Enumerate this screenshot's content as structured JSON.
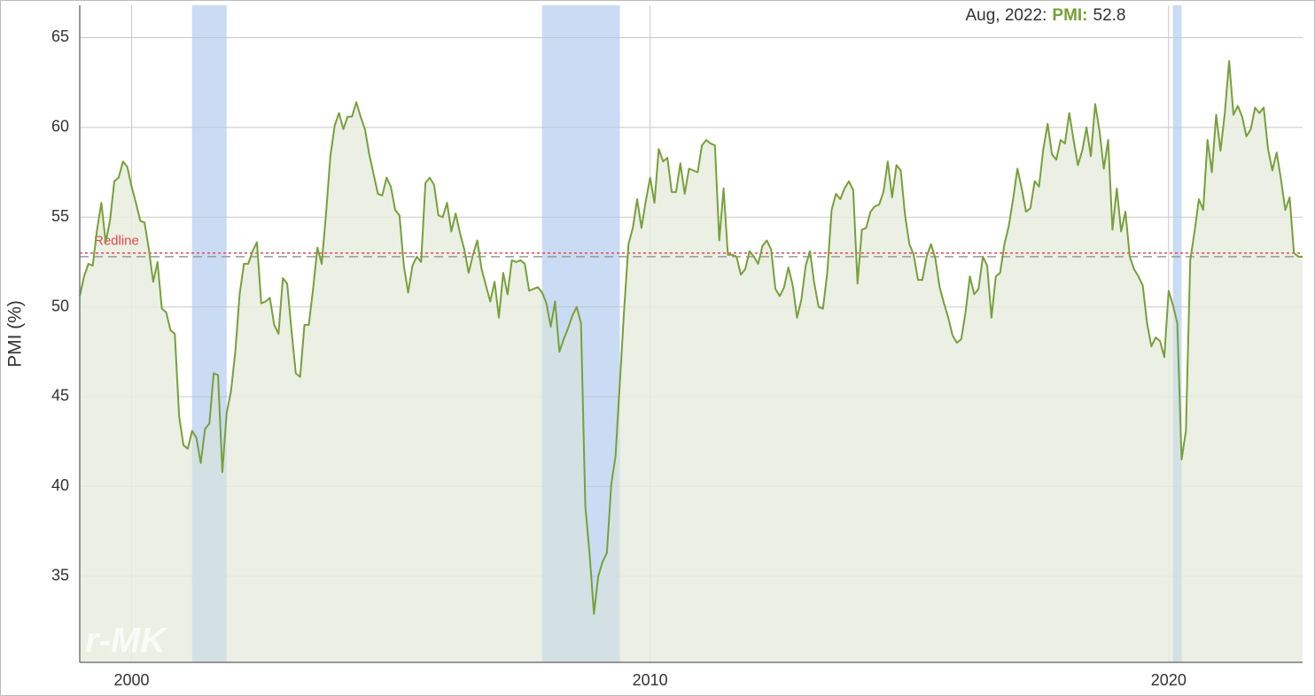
{
  "chart_data": {
    "type": "line",
    "y_label": "PMI (%)",
    "watermark": "r-MK",
    "tooltip": {
      "date": "Aug, 2022:",
      "series": "PMI:",
      "value": 52.8
    },
    "reference_line": {
      "label": "Redline",
      "value": 53,
      "color": "#e8474c"
    },
    "recessions": [
      [
        "2001-03",
        "2001-11"
      ],
      [
        "2007-12",
        "2009-06"
      ],
      [
        "2020-02",
        "2020-04"
      ]
    ],
    "xlim": [
      "1999-01",
      "2022-08"
    ],
    "xticks": [
      2000,
      2010,
      2020
    ],
    "ylim": [
      30.2,
      66.8
    ],
    "yticks": [
      35,
      40,
      45,
      50,
      55,
      60,
      65
    ],
    "grid": true,
    "x": [
      "1999-01",
      "1999-02",
      "1999-03",
      "1999-04",
      "1999-05",
      "1999-06",
      "1999-07",
      "1999-08",
      "1999-09",
      "1999-10",
      "1999-11",
      "1999-12",
      "2000-01",
      "2000-02",
      "2000-03",
      "2000-04",
      "2000-05",
      "2000-06",
      "2000-07",
      "2000-08",
      "2000-09",
      "2000-10",
      "2000-11",
      "2000-12",
      "2001-01",
      "2001-02",
      "2001-03",
      "2001-04",
      "2001-05",
      "2001-06",
      "2001-07",
      "2001-08",
      "2001-09",
      "2001-10",
      "2001-11",
      "2001-12",
      "2002-01",
      "2002-02",
      "2002-03",
      "2002-04",
      "2002-05",
      "2002-06",
      "2002-07",
      "2002-08",
      "2002-09",
      "2002-10",
      "2002-11",
      "2002-12",
      "2003-01",
      "2003-02",
      "2003-03",
      "2003-04",
      "2003-05",
      "2003-06",
      "2003-07",
      "2003-08",
      "2003-09",
      "2003-10",
      "2003-11",
      "2003-12",
      "2004-01",
      "2004-02",
      "2004-03",
      "2004-04",
      "2004-05",
      "2004-06",
      "2004-07",
      "2004-08",
      "2004-09",
      "2004-10",
      "2004-11",
      "2004-12",
      "2005-01",
      "2005-02",
      "2005-03",
      "2005-04",
      "2005-05",
      "2005-06",
      "2005-07",
      "2005-08",
      "2005-09",
      "2005-10",
      "2005-11",
      "2005-12",
      "2006-01",
      "2006-02",
      "2006-03",
      "2006-04",
      "2006-05",
      "2006-06",
      "2006-07",
      "2006-08",
      "2006-09",
      "2006-10",
      "2006-11",
      "2006-12",
      "2007-01",
      "2007-02",
      "2007-03",
      "2007-04",
      "2007-05",
      "2007-06",
      "2007-07",
      "2007-08",
      "2007-09",
      "2007-10",
      "2007-11",
      "2007-12",
      "2008-01",
      "2008-02",
      "2008-03",
      "2008-04",
      "2008-05",
      "2008-06",
      "2008-07",
      "2008-08",
      "2008-09",
      "2008-10",
      "2008-11",
      "2008-12",
      "2009-01",
      "2009-02",
      "2009-03",
      "2009-04",
      "2009-05",
      "2009-06",
      "2009-07",
      "2009-08",
      "2009-09",
      "2009-10",
      "2009-11",
      "2009-12",
      "2010-01",
      "2010-02",
      "2010-03",
      "2010-04",
      "2010-05",
      "2010-06",
      "2010-07",
      "2010-08",
      "2010-09",
      "2010-10",
      "2010-11",
      "2010-12",
      "2011-01",
      "2011-02",
      "2011-03",
      "2011-04",
      "2011-05",
      "2011-06",
      "2011-07",
      "2011-08",
      "2011-09",
      "2011-10",
      "2011-11",
      "2011-12",
      "2012-01",
      "2012-02",
      "2012-03",
      "2012-04",
      "2012-05",
      "2012-06",
      "2012-07",
      "2012-08",
      "2012-09",
      "2012-10",
      "2012-11",
      "2012-12",
      "2013-01",
      "2013-02",
      "2013-03",
      "2013-04",
      "2013-05",
      "2013-06",
      "2013-07",
      "2013-08",
      "2013-09",
      "2013-10",
      "2013-11",
      "2013-12",
      "2014-01",
      "2014-02",
      "2014-03",
      "2014-04",
      "2014-05",
      "2014-06",
      "2014-07",
      "2014-08",
      "2014-09",
      "2014-10",
      "2014-11",
      "2014-12",
      "2015-01",
      "2015-02",
      "2015-03",
      "2015-04",
      "2015-05",
      "2015-06",
      "2015-07",
      "2015-08",
      "2015-09",
      "2015-10",
      "2015-11",
      "2015-12",
      "2016-01",
      "2016-02",
      "2016-03",
      "2016-04",
      "2016-05",
      "2016-06",
      "2016-07",
      "2016-08",
      "2016-09",
      "2016-10",
      "2016-11",
      "2016-12",
      "2017-01",
      "2017-02",
      "2017-03",
      "2017-04",
      "2017-05",
      "2017-06",
      "2017-07",
      "2017-08",
      "2017-09",
      "2017-10",
      "2017-11",
      "2017-12",
      "2018-01",
      "2018-02",
      "2018-03",
      "2018-04",
      "2018-05",
      "2018-06",
      "2018-07",
      "2018-08",
      "2018-09",
      "2018-10",
      "2018-11",
      "2018-12",
      "2019-01",
      "2019-02",
      "2019-03",
      "2019-04",
      "2019-05",
      "2019-06",
      "2019-07",
      "2019-08",
      "2019-09",
      "2019-10",
      "2019-11",
      "2019-12",
      "2020-01",
      "2020-02",
      "2020-03",
      "2020-04",
      "2020-05",
      "2020-06",
      "2020-07",
      "2020-08",
      "2020-09",
      "2020-10",
      "2020-11",
      "2020-12",
      "2021-01",
      "2021-02",
      "2021-03",
      "2021-04",
      "2021-05",
      "2021-06",
      "2021-07",
      "2021-08",
      "2021-09",
      "2021-10",
      "2021-11",
      "2021-12",
      "2022-01",
      "2022-02",
      "2022-03",
      "2022-04",
      "2022-05",
      "2022-06",
      "2022-07",
      "2022-08"
    ],
    "series": [
      {
        "name": "PMI",
        "color": "#77a03a",
        "fill": "#e8ecdf",
        "values": [
          50.6,
          51.7,
          52.4,
          52.3,
          54.3,
          55.8,
          53.6,
          54.8,
          57.0,
          57.2,
          58.1,
          57.8,
          56.7,
          55.8,
          54.8,
          54.7,
          53.2,
          51.4,
          52.5,
          49.9,
          49.7,
          48.7,
          48.5,
          43.9,
          42.3,
          42.1,
          43.1,
          42.7,
          41.3,
          43.2,
          43.5,
          46.3,
          46.2,
          40.8,
          44.1,
          45.3,
          47.5,
          50.7,
          52.4,
          52.4,
          53.1,
          53.6,
          50.2,
          50.3,
          50.5,
          49.0,
          48.5,
          51.6,
          51.3,
          48.7,
          46.3,
          46.1,
          49.0,
          49.0,
          51.0,
          53.3,
          52.4,
          55.2,
          58.4,
          60.1,
          60.8,
          59.9,
          60.6,
          60.6,
          61.4,
          60.6,
          59.9,
          58.5,
          57.4,
          56.3,
          56.2,
          57.2,
          56.7,
          55.4,
          55.1,
          52.3,
          50.8,
          52.3,
          52.8,
          52.5,
          56.9,
          57.2,
          56.8,
          55.1,
          55.0,
          55.8,
          54.2,
          55.2,
          54.1,
          53.2,
          51.9,
          52.9,
          53.7,
          52.1,
          51.2,
          50.3,
          51.4,
          49.4,
          51.9,
          50.7,
          52.6,
          52.5,
          52.6,
          52.4,
          50.9,
          51.0,
          51.1,
          50.8,
          50.2,
          48.9,
          50.3,
          47.5,
          48.2,
          48.8,
          49.5,
          50.0,
          49.1,
          38.9,
          36.2,
          32.9,
          35.0,
          35.8,
          36.3,
          40.1,
          41.7,
          45.8,
          49.9,
          53.5,
          54.4,
          56.0,
          54.4,
          55.9,
          57.2,
          55.8,
          58.8,
          58.1,
          58.3,
          56.4,
          56.4,
          58.0,
          56.3,
          57.7,
          57.6,
          57.5,
          59.0,
          59.3,
          59.1,
          59.0,
          53.7,
          56.6,
          52.9,
          52.9,
          52.8,
          51.8,
          52.1,
          53.1,
          52.8,
          52.4,
          53.4,
          53.7,
          53.2,
          51.0,
          50.6,
          51.1,
          52.2,
          51.2,
          49.4,
          50.4,
          52.3,
          53.1,
          51.3,
          50.0,
          49.9,
          51.9,
          55.4,
          56.3,
          56.0,
          56.6,
          57.0,
          56.5,
          51.3,
          54.3,
          54.4,
          55.3,
          55.6,
          55.7,
          56.4,
          58.1,
          56.1,
          57.9,
          57.6,
          55.1,
          53.5,
          52.9,
          51.5,
          51.5,
          52.8,
          53.5,
          52.7,
          51.1,
          50.2,
          49.4,
          48.4,
          48.0,
          48.2,
          49.7,
          51.7,
          50.7,
          51.0,
          52.8,
          52.3,
          49.4,
          51.7,
          51.9,
          53.5,
          54.5,
          56.0,
          57.7,
          56.6,
          55.3,
          55.5,
          57.0,
          56.7,
          58.8,
          60.2,
          58.5,
          58.2,
          59.3,
          59.1,
          60.8,
          59.3,
          57.9,
          58.7,
          60.0,
          58.4,
          61.3,
          59.8,
          57.7,
          59.3,
          54.3,
          56.6,
          54.2,
          55.3,
          52.8,
          52.1,
          51.7,
          51.2,
          49.1,
          47.8,
          48.3,
          48.1,
          47.2,
          50.9,
          50.1,
          49.1,
          41.5,
          43.1,
          52.6,
          54.2,
          56.0,
          55.4,
          59.3,
          57.5,
          60.7,
          58.7,
          60.8,
          63.7,
          60.7,
          61.2,
          60.6,
          59.5,
          59.9,
          61.1,
          60.8,
          61.1,
          58.8,
          57.6,
          58.6,
          57.1,
          55.4,
          56.1,
          53.0,
          52.8,
          52.8
        ]
      }
    ]
  }
}
